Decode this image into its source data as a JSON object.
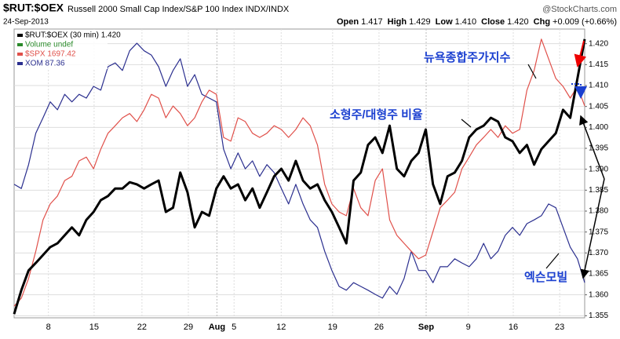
{
  "chart_data": {
    "type": "line",
    "symbol": "$RUT:$OEX",
    "title": "Russell 2000 Small Cap Index/S&P 100 Index INDX/INDX",
    "source": "@StockCharts.com",
    "date": "24-Sep-2013",
    "stats": [
      {
        "label": "Open",
        "value": "1.417"
      },
      {
        "label": "High",
        "value": "1.429"
      },
      {
        "label": "Low",
        "value": "1.410"
      },
      {
        "label": "Close",
        "value": "1.420"
      },
      {
        "label": "Chg",
        "value": "+0.009 (+0.66%)"
      }
    ],
    "legend_extra": {
      "name": "Volume undef",
      "color": "#2a8a2a"
    },
    "annotations": [
      "뉴욕종합주가지수",
      "소형주/대형주 비율",
      "엑슨모빌"
    ],
    "xlim": [
      0,
      79.9
    ],
    "xticks": [
      {
        "value": 4.8,
        "label": "8"
      },
      {
        "value": 11.2,
        "label": "15"
      },
      {
        "value": 17.9,
        "label": "22"
      },
      {
        "value": 24.4,
        "label": "29"
      },
      {
        "value": 28.4,
        "label": "Aug"
      },
      {
        "value": 30.8,
        "label": "5"
      },
      {
        "value": 37.4,
        "label": "12"
      },
      {
        "value": 44.6,
        "label": "19"
      },
      {
        "value": 51.1,
        "label": "26"
      },
      {
        "value": 57.7,
        "label": "Sep"
      },
      {
        "value": 63.6,
        "label": "9"
      },
      {
        "value": 69.9,
        "label": "16"
      },
      {
        "value": 76.4,
        "label": "23"
      }
    ],
    "ylim": [
      1.3545,
      1.4235
    ],
    "yticks": [
      1.355,
      {
        "value": 1.36,
        "label": "1.360"
      },
      1.365,
      {
        "value": 1.37,
        "label": "1.370"
      },
      1.375,
      {
        "value": 1.38,
        "label": "1.380"
      },
      1.385,
      {
        "value": 1.39,
        "label": "1.390"
      },
      1.395,
      {
        "value": 1.4,
        "label": "1.400"
      },
      1.405,
      {
        "value": 1.41,
        "label": "1.410"
      },
      1.415,
      {
        "value": 1.42,
        "label": "1.420"
      }
    ],
    "grid": true,
    "series": [
      {
        "name": "$RUT:$OEX (30 min) 1.420",
        "color": "#000000",
        "width": 3,
        "values": [
          1.3554,
          1.3611,
          1.3658,
          1.3676,
          1.3695,
          1.3714,
          1.3723,
          1.3742,
          1.3761,
          1.3742,
          1.3779,
          1.3798,
          1.3826,
          1.3836,
          1.3854,
          1.3854,
          1.3869,
          1.3864,
          1.3854,
          1.3864,
          1.3873,
          1.3798,
          1.3808,
          1.3892,
          1.3845,
          1.3761,
          1.3798,
          1.3789,
          1.3854,
          1.3883,
          1.3854,
          1.3864,
          1.3826,
          1.3854,
          1.3808,
          1.3845,
          1.3883,
          1.3901,
          1.3873,
          1.392,
          1.3873,
          1.3854,
          1.3864,
          1.3826,
          1.3798,
          1.3761,
          1.3723,
          1.3873,
          1.3892,
          1.3958,
          1.3976,
          1.3939,
          1.4004,
          1.3901,
          1.3883,
          1.392,
          1.3939,
          1.3995,
          1.3864,
          1.3817,
          1.3883,
          1.3892,
          1.392,
          1.3976,
          1.3995,
          1.4004,
          1.4023,
          1.4014,
          1.3976,
          1.3967,
          1.3939,
          1.3958,
          1.3911,
          1.3948,
          1.3967,
          1.3986,
          1.4042,
          1.4023,
          1.4117,
          1.4211
        ]
      },
      {
        "name": "$SPX 1697.42",
        "color": "#e0504a",
        "width": 1.2,
        "values": [
          1.3573,
          1.3592,
          1.3639,
          1.3704,
          1.3779,
          1.3817,
          1.3836,
          1.3873,
          1.3883,
          1.392,
          1.3929,
          1.3901,
          1.3948,
          1.3986,
          1.4004,
          1.4023,
          1.4033,
          1.4014,
          1.4042,
          1.4079,
          1.407,
          1.4023,
          1.4051,
          1.4033,
          1.4004,
          1.4023,
          1.4061,
          1.4089,
          1.4079,
          1.3976,
          1.3967,
          1.4023,
          1.4014,
          1.3986,
          1.3976,
          1.3986,
          1.4004,
          1.3995,
          1.3976,
          1.3995,
          1.4023,
          1.4004,
          1.3958,
          1.3864,
          1.3817,
          1.3798,
          1.3789,
          1.3854,
          1.3808,
          1.3789,
          1.3873,
          1.3901,
          1.3779,
          1.3742,
          1.3723,
          1.3704,
          1.3686,
          1.3695,
          1.3751,
          1.3808,
          1.3826,
          1.3845,
          1.3901,
          1.3929,
          1.3958,
          1.3976,
          1.3995,
          1.3976,
          1.4004,
          1.3986,
          1.3995,
          1.4089,
          1.4136,
          1.4211,
          1.4164,
          1.4117,
          1.4098,
          1.407,
          1.4098,
          1.4051
        ]
      },
      {
        "name": "XOM 87.36",
        "color": "#2b2f8f",
        "width": 1.2,
        "values": [
          1.3864,
          1.3854,
          1.3911,
          1.3986,
          1.4023,
          1.4061,
          1.4042,
          1.4079,
          1.4061,
          1.4079,
          1.407,
          1.4098,
          1.4089,
          1.4145,
          1.4154,
          1.4136,
          1.4183,
          1.4201,
          1.4183,
          1.4173,
          1.4145,
          1.4098,
          1.4136,
          1.4164,
          1.4098,
          1.4126,
          1.4079,
          1.407,
          1.4061,
          1.3948,
          1.3901,
          1.3939,
          1.3901,
          1.392,
          1.3883,
          1.3911,
          1.3892,
          1.3854,
          1.3817,
          1.3864,
          1.3817,
          1.3779,
          1.3761,
          1.3704,
          1.3658,
          1.362,
          1.3611,
          1.3629,
          1.362,
          1.3611,
          1.3601,
          1.3592,
          1.362,
          1.3601,
          1.3639,
          1.3704,
          1.3658,
          1.3658,
          1.3629,
          1.3667,
          1.3667,
          1.3686,
          1.3676,
          1.3667,
          1.3686,
          1.3723,
          1.3686,
          1.3704,
          1.3742,
          1.3761,
          1.3742,
          1.377,
          1.3779,
          1.3789,
          1.3817,
          1.3808,
          1.3761,
          1.3714,
          1.3686,
          1.3629
        ]
      }
    ]
  }
}
